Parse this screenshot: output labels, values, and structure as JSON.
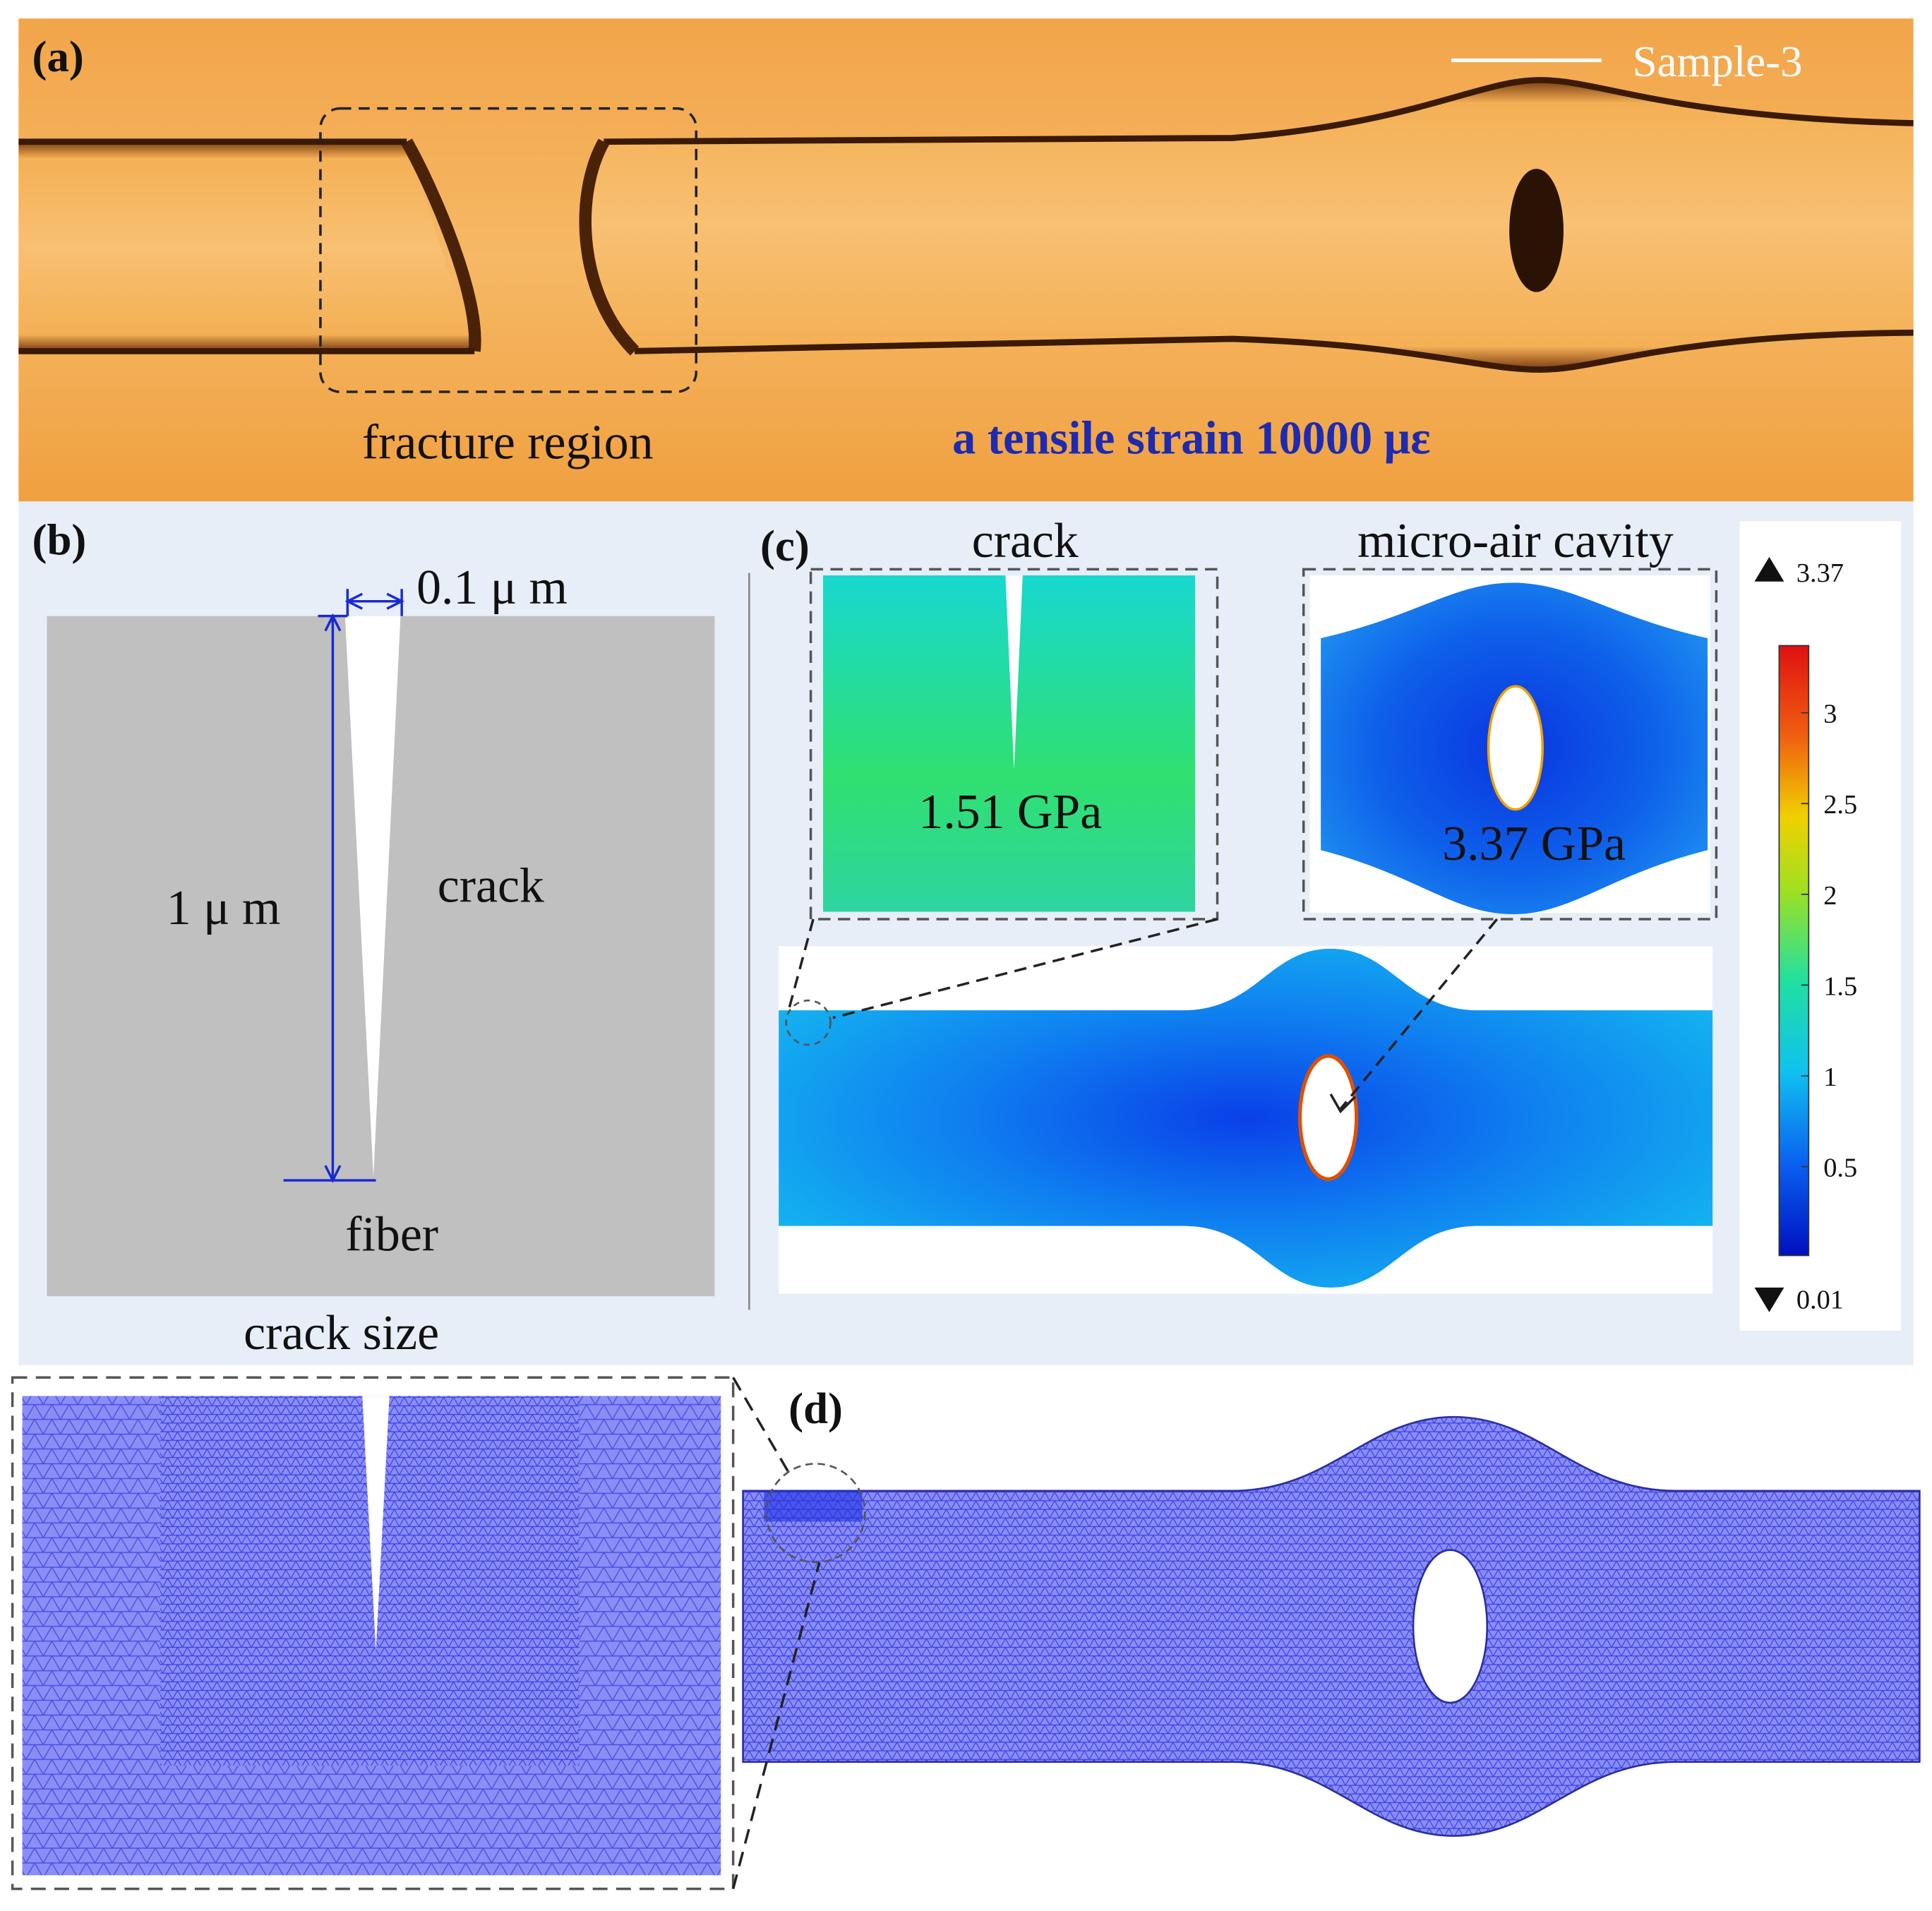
{
  "panel_a": {
    "label": "(a)",
    "scale_label": "Sample-3",
    "region_label": "fracture region",
    "strain_label": "a tensile strain 10000 με"
  },
  "panel_b": {
    "label": "(b)",
    "width_label": "0.1 μ m",
    "length_label": "1 μ m",
    "crack_label": "crack",
    "fiber_label": "fiber",
    "caption": "crack size"
  },
  "panel_c": {
    "label": "(c)",
    "crack_title": "crack",
    "cavity_title": "micro-air cavity",
    "crack_stress": "1.51 GPa",
    "cavity_stress": "3.37 GPa",
    "colorbar": {
      "max": 3.37,
      "min": 0.01,
      "ticks": [
        3,
        2.5,
        2,
        1.5,
        1,
        0.5
      ]
    }
  },
  "panel_d": {
    "label": "(d)"
  }
}
